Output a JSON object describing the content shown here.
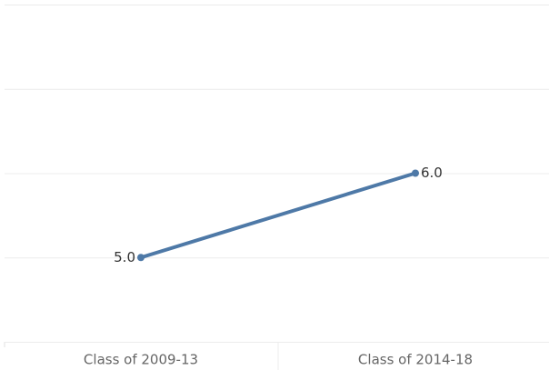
{
  "chart_data": {
    "type": "line",
    "categories": [
      "Class of 2009-13",
      "Class of 2014-18"
    ],
    "values": [
      5,
      6
    ],
    "value_labels": [
      "5.0",
      "6.0"
    ],
    "color": "#4e79a7",
    "ylim": [
      4,
      8
    ],
    "yticks": [
      4,
      5,
      6,
      7,
      8
    ],
    "grid": true
  }
}
